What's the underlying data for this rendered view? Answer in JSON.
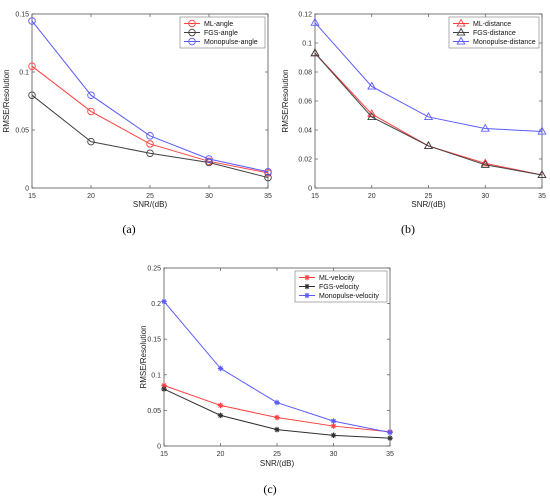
{
  "chart_data": [
    {
      "type": "line",
      "panel_label": "(a)",
      "x": [
        15,
        20,
        25,
        30,
        35
      ],
      "xlabel": "SNR/(dB)",
      "ylabel": "RMSE/Resolution",
      "xlim": [
        15,
        35
      ],
      "ylim": [
        0,
        0.15
      ],
      "xticks": [
        "15",
        "20",
        "25",
        "30",
        "35"
      ],
      "yticks": [
        "0",
        "0.05",
        "0.1",
        "0.15"
      ],
      "legend_position": "top-right",
      "marker": "circle",
      "series": [
        {
          "name": "ML-angle",
          "color": "#ff4040",
          "values": [
            0.105,
            0.066,
            0.038,
            0.023,
            0.013
          ]
        },
        {
          "name": "FGS-angle",
          "color": "#404040",
          "values": [
            0.08,
            0.04,
            0.03,
            0.022,
            0.009
          ]
        },
        {
          "name": "Monopulse-angle",
          "color": "#5b5bff",
          "values": [
            0.144,
            0.08,
            0.045,
            0.025,
            0.014
          ]
        }
      ]
    },
    {
      "type": "line",
      "panel_label": "(b)",
      "x": [
        15,
        20,
        25,
        30,
        35
      ],
      "xlabel": "SNR/(dB)",
      "ylabel": "RMSE/Resolution",
      "xlim": [
        15,
        35
      ],
      "ylim": [
        0,
        0.12
      ],
      "xticks": [
        "15",
        "20",
        "25",
        "30",
        "35"
      ],
      "yticks": [
        "0",
        "0.02",
        "0.04",
        "0.06",
        "0.08",
        "0.1",
        "0.12"
      ],
      "legend_position": "top-right",
      "marker": "triangle",
      "series": [
        {
          "name": "ML-distance",
          "color": "#ff4040",
          "values": [
            0.093,
            0.051,
            0.029,
            0.017,
            0.009
          ]
        },
        {
          "name": "FGS-distance",
          "color": "#404040",
          "values": [
            0.093,
            0.049,
            0.029,
            0.016,
            0.009
          ]
        },
        {
          "name": "Monopulse-distance",
          "color": "#5b5bff",
          "values": [
            0.114,
            0.07,
            0.049,
            0.041,
            0.039
          ]
        }
      ]
    },
    {
      "type": "line",
      "panel_label": "(c)",
      "x": [
        15,
        20,
        25,
        30,
        35
      ],
      "xlabel": "SNR/(dB)",
      "ylabel": "RMSE/Resolution",
      "xlim": [
        15,
        35
      ],
      "ylim": [
        0,
        0.25
      ],
      "xticks": [
        "15",
        "20",
        "25",
        "30",
        "35"
      ],
      "yticks": [
        "0",
        "0.05",
        "0.1",
        "0.15",
        "0.2",
        "0.25"
      ],
      "legend_position": "top-right",
      "marker": "star",
      "series": [
        {
          "name": "ML-velocity",
          "color": "#ff4040",
          "values": [
            0.085,
            0.057,
            0.04,
            0.028,
            0.02
          ]
        },
        {
          "name": "FGS-velocity",
          "color": "#303030",
          "values": [
            0.08,
            0.043,
            0.023,
            0.015,
            0.011
          ]
        },
        {
          "name": "Monopulse-velocity",
          "color": "#5b5bff",
          "values": [
            0.203,
            0.109,
            0.061,
            0.035,
            0.019
          ]
        }
      ]
    }
  ]
}
